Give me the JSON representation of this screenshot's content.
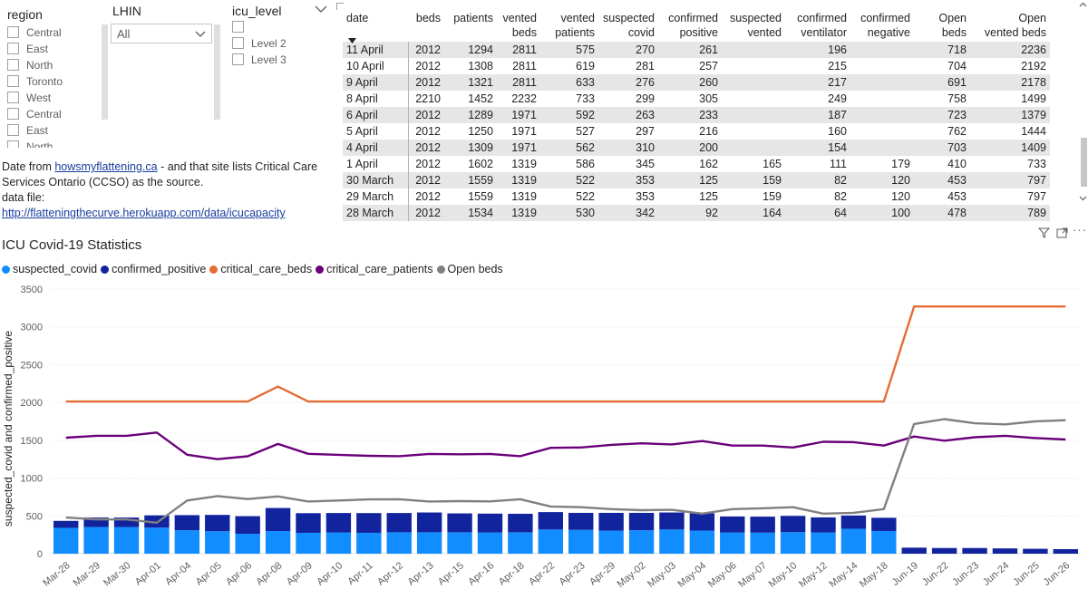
{
  "region_slicer": {
    "title": "region",
    "items": [
      "Central",
      "East",
      "North",
      "Toronto",
      "West",
      "Central",
      "East",
      "North"
    ]
  },
  "lhin_slicer": {
    "title": "LHIN",
    "selected": "All"
  },
  "icu_slicer": {
    "title": "icu_level",
    "items": [
      "",
      "Level 2",
      "Level 3"
    ]
  },
  "source": {
    "line1_pre": "Date from ",
    "link1": "howsmyflattening.ca",
    "line1_post": " - and that site lists Critical Care Services Ontario (CCSO) as the source.",
    "label2": "data file:",
    "link2": "http://flatteningthecurve.herokuapp.com/data/icucapacity"
  },
  "table": {
    "headers": [
      [
        "date",
        ""
      ],
      [
        "beds",
        ""
      ],
      [
        "patients",
        ""
      ],
      [
        "vented",
        "beds"
      ],
      [
        "vented",
        "patients"
      ],
      [
        "suspected",
        "covid"
      ],
      [
        "confirmed",
        "positive"
      ],
      [
        "suspected",
        "vented"
      ],
      [
        "confirmed",
        "ventilator"
      ],
      [
        "confirmed",
        "negative"
      ],
      [
        "Open",
        "beds"
      ],
      [
        "Open",
        "vented beds"
      ]
    ],
    "rows": [
      [
        "11 April",
        "2012",
        "1294",
        "2811",
        "575",
        "270",
        "261",
        "",
        "196",
        "",
        "718",
        "2236"
      ],
      [
        "10 April",
        "2012",
        "1308",
        "2811",
        "619",
        "281",
        "257",
        "",
        "215",
        "",
        "704",
        "2192"
      ],
      [
        "9 April",
        "2012",
        "1321",
        "2811",
        "633",
        "276",
        "260",
        "",
        "217",
        "",
        "691",
        "2178"
      ],
      [
        "8 April",
        "2210",
        "1452",
        "2232",
        "733",
        "299",
        "305",
        "",
        "249",
        "",
        "758",
        "1499"
      ],
      [
        "6 April",
        "2012",
        "1289",
        "1971",
        "592",
        "263",
        "233",
        "",
        "187",
        "",
        "723",
        "1379"
      ],
      [
        "5 April",
        "2012",
        "1250",
        "1971",
        "527",
        "297",
        "216",
        "",
        "160",
        "",
        "762",
        "1444"
      ],
      [
        "4 April",
        "2012",
        "1309",
        "1971",
        "562",
        "310",
        "200",
        "",
        "154",
        "",
        "703",
        "1409"
      ],
      [
        "1 April",
        "2012",
        "1602",
        "1319",
        "586",
        "345",
        "162",
        "165",
        "111",
        "179",
        "410",
        "733"
      ],
      [
        "30 March",
        "2012",
        "1559",
        "1319",
        "522",
        "353",
        "125",
        "159",
        "82",
        "120",
        "453",
        "797"
      ],
      [
        "29 March",
        "2012",
        "1559",
        "1319",
        "522",
        "353",
        "125",
        "159",
        "82",
        "120",
        "453",
        "797"
      ],
      [
        "28 March",
        "2012",
        "1534",
        "1319",
        "530",
        "342",
        "92",
        "164",
        "64",
        "100",
        "478",
        "789"
      ]
    ]
  },
  "chart": {
    "title": "ICU Covid-19 Statistics",
    "legend": [
      {
        "label": "suspected_covid",
        "color": "#118dff"
      },
      {
        "label": "confirmed_positive",
        "color": "#12239e"
      },
      {
        "label": "critical_care_beds",
        "color": "#e66c37"
      },
      {
        "label": "critical_care_patients",
        "color": "#6b007b"
      },
      {
        "label": "Open beds",
        "color": "#808080"
      }
    ]
  },
  "chart_data": {
    "type": "bar",
    "title": "ICU Covid-19 Statistics",
    "xlabel": "",
    "ylabel": "suspected_covid and confirmed_positive",
    "ylim": [
      0,
      3500
    ],
    "yticks": [
      0,
      500,
      1000,
      1500,
      2000,
      2500,
      3000,
      3500
    ],
    "grid": true,
    "categories": [
      "Mar-28",
      "Mar-29",
      "Mar-30",
      "Apr-01",
      "Apr-04",
      "Apr-05",
      "Apr-06",
      "Apr-08",
      "Apr-09",
      "Apr-10",
      "Apr-11",
      "Apr-12",
      "Apr-13",
      "Apr-15",
      "Apr-16",
      "Apr-18",
      "Apr-22",
      "Apr-23",
      "Apr-29",
      "May-02",
      "May-03",
      "May-04",
      "May-06",
      "May-07",
      "May-10",
      "May-12",
      "May-14",
      "May-18",
      "Jun-19",
      "Jun-22",
      "Jun-23",
      "Jun-24",
      "Jun-25",
      "Jun-26"
    ],
    "series": [
      {
        "name": "suspected_covid",
        "kind": "stacked-bar",
        "color": "#118dff",
        "values": [
          342,
          353,
          353,
          345,
          310,
          297,
          263,
          299,
          276,
          281,
          276,
          283,
          283,
          283,
          280,
          283,
          320,
          315,
          305,
          310,
          320,
          305,
          280,
          278,
          285,
          280,
          330,
          300,
          0,
          0,
          0,
          0,
          0,
          0
        ]
      },
      {
        "name": "confirmed_positive",
        "kind": "stacked-bar",
        "color": "#12239e",
        "values": [
          92,
          125,
          125,
          162,
          200,
          216,
          233,
          305,
          260,
          257,
          261,
          255,
          262,
          250,
          250,
          245,
          230,
          225,
          235,
          230,
          225,
          230,
          212,
          212,
          215,
          200,
          175,
          175,
          80,
          75,
          75,
          70,
          65,
          60
        ]
      },
      {
        "name": "critical_care_beds",
        "kind": "line",
        "color": "#e66c37",
        "values": [
          2012,
          2012,
          2012,
          2012,
          2012,
          2012,
          2012,
          2210,
          2012,
          2012,
          2012,
          2012,
          2012,
          2012,
          2012,
          2012,
          2012,
          2012,
          2012,
          2012,
          2012,
          2012,
          2012,
          2012,
          2012,
          2012,
          2012,
          2012,
          3270,
          3270,
          3270,
          3270,
          3270,
          3270
        ]
      },
      {
        "name": "critical_care_patients",
        "kind": "line",
        "color": "#6b007b",
        "values": [
          1534,
          1559,
          1559,
          1602,
          1309,
          1250,
          1289,
          1452,
          1321,
          1308,
          1294,
          1290,
          1320,
          1315,
          1320,
          1290,
          1400,
          1405,
          1440,
          1460,
          1445,
          1490,
          1430,
          1430,
          1405,
          1480,
          1475,
          1430,
          1550,
          1495,
          1540,
          1560,
          1530,
          1510
        ]
      },
      {
        "name": "Open beds",
        "kind": "line",
        "color": "#808080",
        "values": [
          478,
          453,
          453,
          410,
          703,
          762,
          723,
          758,
          691,
          704,
          718,
          720,
          690,
          695,
          692,
          720,
          625,
          615,
          590,
          575,
          580,
          530,
          590,
          600,
          615,
          530,
          540,
          590,
          1715,
          1780,
          1725,
          1710,
          1750,
          1765
        ]
      }
    ]
  }
}
